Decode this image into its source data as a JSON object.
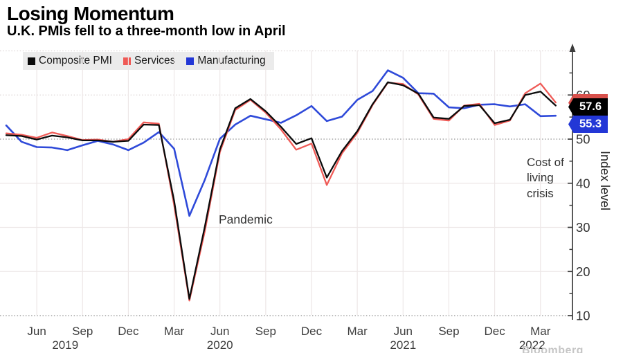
{
  "header": {
    "title": "Losing Momentum",
    "subtitle": "U.K. PMIs fell to a three-month low in April"
  },
  "legend": {
    "items": [
      {
        "label": "Composite PMI",
        "color": "#0a0a0a"
      },
      {
        "label": "Services",
        "color": "#ef5a56"
      },
      {
        "label": "Manufacturing",
        "color": "#2337d6"
      }
    ]
  },
  "annotations": {
    "pandemic": "Pandemic",
    "cost_of_living": "Cost of living crisis"
  },
  "value_labels": {
    "composite": {
      "text": "57.6",
      "bg": "#000000"
    },
    "services": {
      "bg": "#d8504b"
    },
    "manufacturing": {
      "text": "55.3",
      "bg": "#2337d6"
    }
  },
  "y_axis": {
    "title": "Index level",
    "ticks": [
      10,
      20,
      30,
      40,
      50,
      60
    ],
    "minor_ticks": [
      15,
      25,
      35,
      45,
      55,
      65
    ]
  },
  "watermark": "Bloomberg",
  "chart_data": {
    "type": "line",
    "title": "Losing Momentum",
    "subtitle": "U.K. PMIs fell to a three-month low in April",
    "ylabel": "Index level",
    "ylim": [
      8,
      70
    ],
    "x_monthly": {
      "from": "Apr 2019",
      "to": "Apr 2022"
    },
    "x_ticks": [
      {
        "label": "Jun",
        "index": 2
      },
      {
        "label": "Sep",
        "index": 5,
        "year": "2019",
        "year_dx": -25
      },
      {
        "label": "Dec",
        "index": 8
      },
      {
        "label": "Mar",
        "index": 11
      },
      {
        "label": "Jun",
        "index": 14,
        "year": "2020"
      },
      {
        "label": "Sep",
        "index": 17
      },
      {
        "label": "Dec",
        "index": 20
      },
      {
        "label": "Mar",
        "index": 23
      },
      {
        "label": "Jun",
        "index": 26,
        "year": "2021"
      },
      {
        "label": "Sep",
        "index": 29
      },
      {
        "label": "Dec",
        "index": 32
      },
      {
        "label": "Mar",
        "index": 35,
        "year": "2022",
        "year_dx": -12
      }
    ],
    "gridlines": {
      "solid": [
        20,
        30,
        40
      ],
      "dotted": [
        10,
        50
      ],
      "dotted_light": [
        60,
        70
      ]
    },
    "series": [
      {
        "name": "Manufacturing",
        "color": "#2f4ad9",
        "values": [
          53.1,
          49.4,
          48.2,
          48.1,
          47.5,
          48.6,
          49.6,
          48.8,
          47.5,
          49.2,
          51.6,
          47.8,
          32.6,
          40.7,
          50.1,
          53.3,
          55.3,
          54.5,
          53.7,
          55.4,
          57.5,
          54.1,
          55.1,
          58.9,
          60.9,
          65.6,
          63.9,
          60.4,
          60.3,
          57.2,
          57.0,
          57.8,
          57.9,
          57.4,
          57.9,
          55.2,
          55.3
        ]
      },
      {
        "name": "Services",
        "color": "#ef5a56",
        "values": [
          51.3,
          51.0,
          50.3,
          51.5,
          50.7,
          49.8,
          49.9,
          49.4,
          50.0,
          53.8,
          53.5,
          35.0,
          13.4,
          29.0,
          47.1,
          56.6,
          58.9,
          56.0,
          52.2,
          47.6,
          49.0,
          39.6,
          46.8,
          51.4,
          57.7,
          62.8,
          62.5,
          60.1,
          54.6,
          54.2,
          57.6,
          58.0,
          53.2,
          54.2,
          60.4,
          62.6,
          58.3
        ]
      },
      {
        "name": "Composite PMI",
        "color": "#0b0b0b",
        "values": [
          50.9,
          50.7,
          49.9,
          50.8,
          50.4,
          49.7,
          49.7,
          49.4,
          49.6,
          53.3,
          53.2,
          36.0,
          13.8,
          30.0,
          47.7,
          57.0,
          59.1,
          56.3,
          52.8,
          48.9,
          50.2,
          41.3,
          47.3,
          51.8,
          57.9,
          62.9,
          62.2,
          60.3,
          54.9,
          54.6,
          57.5,
          57.7,
          53.6,
          54.4,
          60.0,
          60.8,
          57.6
        ]
      }
    ]
  }
}
